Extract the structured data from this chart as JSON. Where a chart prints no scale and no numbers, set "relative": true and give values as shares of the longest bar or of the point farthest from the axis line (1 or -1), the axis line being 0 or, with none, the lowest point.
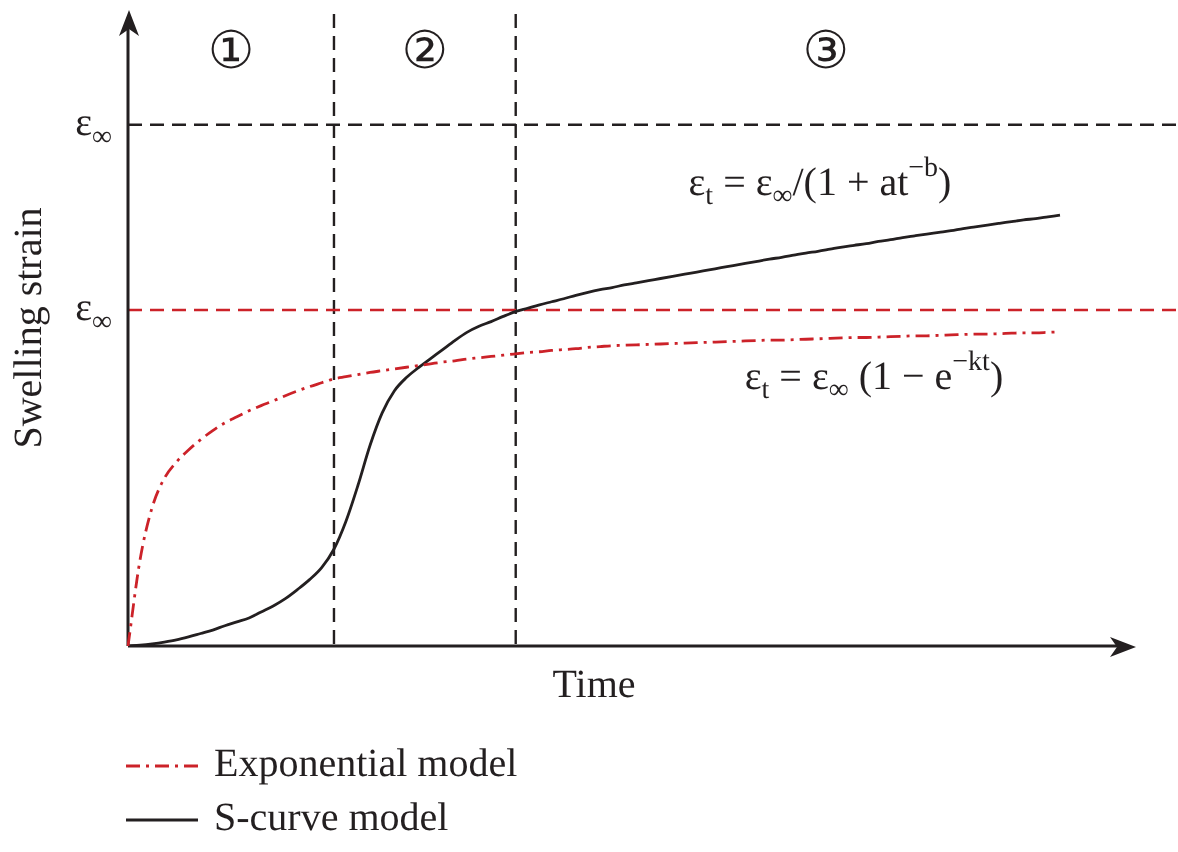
{
  "chart_data": {
    "type": "line",
    "xlabel": "Time",
    "ylabel": "Swelling strain",
    "relative": true,
    "legend": "bottom left",
    "categories": [
      null,
      null,
      null,
      null,
      null,
      null,
      null,
      null,
      null,
      null,
      null,
      null,
      null,
      null,
      null,
      null,
      null,
      null,
      null,
      null,
      null,
      null,
      null,
      null,
      null,
      null,
      null,
      null,
      null,
      null,
      null,
      null,
      null,
      null,
      null,
      null,
      null,
      null,
      null,
      null,
      null,
      null,
      null,
      null,
      null,
      null,
      null,
      null,
      null,
      null,
      null,
      null,
      null,
      null,
      null,
      null,
      null,
      null,
      null,
      null,
      null,
      null,
      null,
      null,
      null,
      null,
      null,
      null,
      null,
      null,
      null,
      null,
      null,
      null,
      null,
      null,
      null,
      null
    ],
    "series": [
      {
        "name": "Exponential model",
        "color": "#cc2229",
        "line_style": "dashed",
        "values": [
          0,
          0.201,
          0.322,
          0.389,
          0.427,
          0.455,
          0.479,
          0.5,
          0.518,
          0.532,
          0.546,
          0.558,
          0.569,
          0.581,
          0.592,
          0.602,
          0.611,
          0.62,
          0.625,
          0.63,
          0.635,
          0.639,
          0.643,
          0.647,
          0.651,
          0.655,
          0.659,
          0.662,
          0.666,
          0.669,
          0.672,
          0.675,
          0.678,
          0.681,
          0.683,
          0.686,
          0.688,
          0.69,
          0.693,
          0.695,
          0.697,
          0.698,
          0.699,
          0.7,
          0.701,
          0.702,
          0.703,
          0.704,
          0.705,
          0.706,
          0.707,
          0.708,
          0.709,
          0.71,
          0.71,
          0.711,
          0.712,
          0.713,
          0.714,
          0.715,
          0.716,
          0.716,
          0.717,
          0.718,
          0.719,
          0.72,
          0.72,
          0.721,
          0.722,
          0.723,
          0.724,
          0.724,
          0.725,
          0.726,
          0.727,
          0.727,
          0.728,
          0.729
        ]
      },
      {
        "name": "S-curve model",
        "color": "#231f20",
        "line_style": "solid",
        "values": [
          0,
          0.002,
          0.005,
          0.009,
          0.014,
          0.021,
          0.029,
          0.037,
          0.047,
          0.056,
          0.065,
          0.079,
          0.093,
          0.11,
          0.131,
          0.154,
          0.182,
          0.224,
          0.289,
          0.373,
          0.466,
          0.541,
          0.592,
          0.623,
          0.646,
          0.667,
          0.688,
          0.709,
          0.728,
          0.742,
          0.753,
          0.765,
          0.776,
          0.784,
          0.792,
          0.799,
          0.806,
          0.814,
          0.821,
          0.827,
          0.832,
          0.838,
          0.843,
          0.848,
          0.853,
          0.858,
          0.863,
          0.868,
          0.873,
          0.878,
          0.883,
          0.888,
          0.893,
          0.898,
          0.902,
          0.907,
          0.912,
          0.916,
          0.921,
          0.926,
          0.93,
          0.934,
          0.939,
          0.943,
          0.948,
          0.952,
          0.956,
          0.96,
          0.964,
          0.969,
          0.973,
          0.977,
          0.981,
          0.985,
          0.989,
          0.992,
          0.996,
          1.0
        ]
      }
    ],
    "ref_lines": [
      {
        "axis": "y",
        "value": 1.21,
        "label": "ε$_{∞}$",
        "color": "#231f20",
        "line_style": "dashed"
      },
      {
        "axis": "y",
        "value": 0.78,
        "label": "ε$_{∞}$",
        "color": "#cc2229",
        "line_style": "dashed"
      }
    ],
    "annotations": [
      "①",
      "②",
      "③",
      "ε$_{t}$ = ε$_{∞}$/(1 + at$^{−b}$)",
      "ε$_{t}$ = ε$_{∞}$ (1 − e$^{−kt}$)"
    ]
  }
}
